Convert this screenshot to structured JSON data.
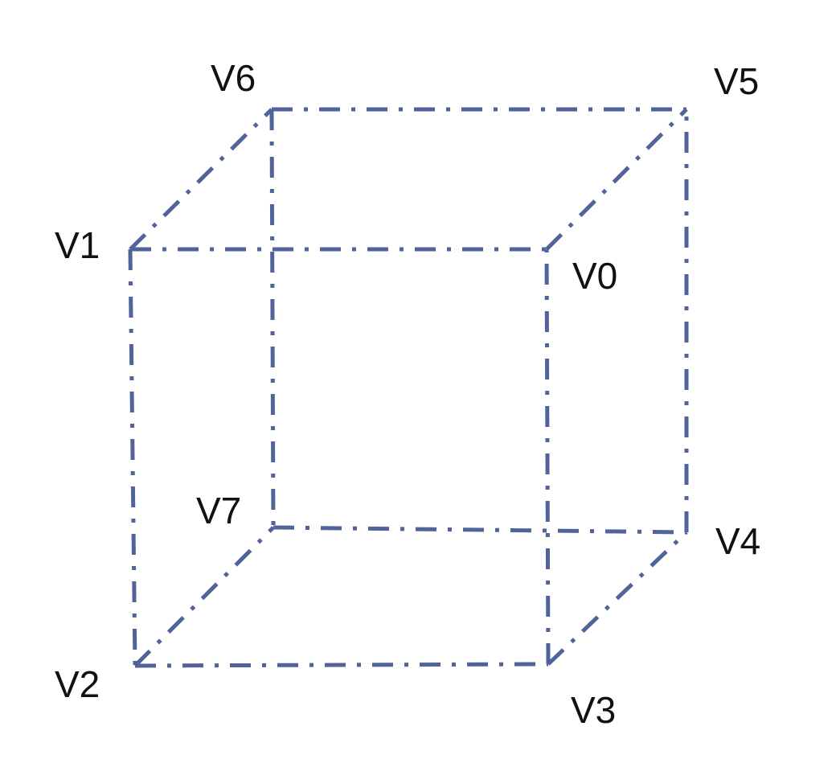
{
  "diagram": {
    "type": "wireframe-cube",
    "edge_style": "dash-dot",
    "edge_color": "#52639a",
    "vertices": [
      {
        "id": "v0",
        "label": "V0"
      },
      {
        "id": "v1",
        "label": "V1"
      },
      {
        "id": "v2",
        "label": "V2"
      },
      {
        "id": "v3",
        "label": "V3"
      },
      {
        "id": "v4",
        "label": "V4"
      },
      {
        "id": "v5",
        "label": "V5"
      },
      {
        "id": "v6",
        "label": "V6"
      },
      {
        "id": "v7",
        "label": "V7"
      }
    ],
    "edges": [
      [
        "v1",
        "v0"
      ],
      [
        "v1",
        "v2"
      ],
      [
        "v2",
        "v3"
      ],
      [
        "v3",
        "v0"
      ],
      [
        "v6",
        "v5"
      ],
      [
        "v6",
        "v7"
      ],
      [
        "v7",
        "v4"
      ],
      [
        "v4",
        "v5"
      ],
      [
        "v1",
        "v6"
      ],
      [
        "v0",
        "v5"
      ],
      [
        "v2",
        "v7"
      ],
      [
        "v3",
        "v4"
      ]
    ]
  }
}
